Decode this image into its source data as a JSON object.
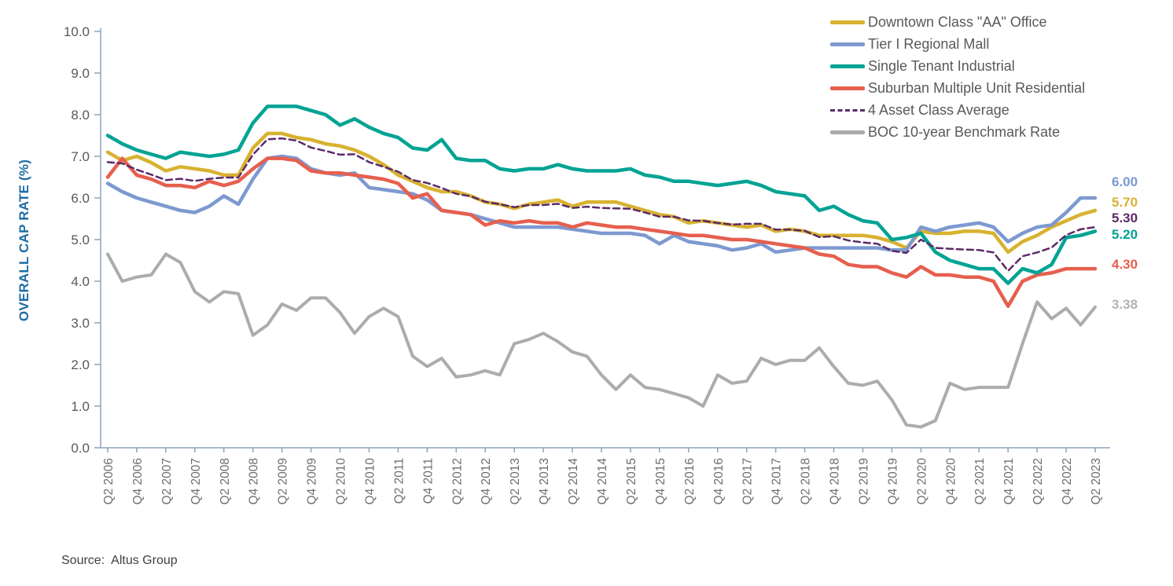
{
  "y_axis_title": "OVERALL CAP RATE (%)",
  "source": {
    "text": "Source:  Altus Group"
  },
  "colors": {
    "axis_line": "#8EA2BD",
    "tick_text": "#595959",
    "x_label_text": "#6e6e6e",
    "y_title": "#1E6CA5"
  },
  "end_labels": [
    {
      "text": "6.00",
      "color": "#7D99D0"
    },
    {
      "text": "5.70",
      "color": "#D8B230"
    },
    {
      "text": "5.30",
      "color": "#5B2A68"
    },
    {
      "text": "5.20",
      "color": "#00A394"
    },
    {
      "text": "4.30",
      "color": "#E65F4E"
    },
    {
      "text": "3.38",
      "color": "#B3B3B3"
    }
  ],
  "chart_data": {
    "type": "line",
    "title": "",
    "xlabel": "",
    "ylabel": "OVERALL CAP RATE (%)",
    "ylim": [
      0,
      10
    ],
    "y_tick_step": 1.0,
    "y_tick_labels": [
      "0.0",
      "1.0",
      "2.0",
      "3.0",
      "4.0",
      "5.0",
      "6.0",
      "7.0",
      "8.0",
      "9.0",
      "10.0"
    ],
    "grid": false,
    "legend_position": "top-right",
    "x_label_step": 2,
    "x": [
      "Q2 2006",
      "Q3 2006",
      "Q4 2006",
      "Q1 2007",
      "Q2 2007",
      "Q3 2007",
      "Q4 2007",
      "Q1 2008",
      "Q2 2008",
      "Q3 2008",
      "Q4 2008",
      "Q1 2009",
      "Q2 2009",
      "Q3 2009",
      "Q4 2009",
      "Q1 2010",
      "Q2 2010",
      "Q3 2010",
      "Q4 2010",
      "Q1 2011",
      "Q2 2011",
      "Q3 2011",
      "Q4 2011",
      "Q1 2012",
      "Q2 2012",
      "Q3 2012",
      "Q4 2012",
      "Q1 2013",
      "Q2 2013",
      "Q3 2013",
      "Q4 2013",
      "Q1 2014",
      "Q2 2014",
      "Q3 2014",
      "Q4 2014",
      "Q1 2015",
      "Q2 2015",
      "Q3 2015",
      "Q4 2015",
      "Q1 2016",
      "Q2 2016",
      "Q3 2016",
      "Q4 2016",
      "Q1 2017",
      "Q2 2017",
      "Q3 2017",
      "Q4 2017",
      "Q1 2018",
      "Q2 2018",
      "Q3 2018",
      "Q4 2018",
      "Q1 2019",
      "Q2 2019",
      "Q3 2019",
      "Q4 2019",
      "Q1 2020",
      "Q2 2020",
      "Q3 2020",
      "Q4 2020",
      "Q1 2021",
      "Q2 2021",
      "Q3 2021",
      "Q4 2021",
      "Q1 2022",
      "Q2 2022",
      "Q3 2022",
      "Q4 2022",
      "Q1 2023",
      "Q2 2023"
    ],
    "series": [
      {
        "name": "Downtown Class \"AA\" Office",
        "color": "#D8B230",
        "dash": false,
        "width": 4.5,
        "values": [
          7.1,
          6.9,
          7.0,
          6.85,
          6.65,
          6.75,
          6.7,
          6.65,
          6.55,
          6.55,
          7.2,
          7.55,
          7.55,
          7.45,
          7.4,
          7.3,
          7.25,
          7.15,
          7.0,
          6.8,
          6.55,
          6.4,
          6.25,
          6.15,
          6.15,
          6.05,
          5.9,
          5.85,
          5.75,
          5.85,
          5.9,
          5.95,
          5.8,
          5.9,
          5.9,
          5.9,
          5.8,
          5.7,
          5.6,
          5.55,
          5.4,
          5.45,
          5.4,
          5.35,
          5.3,
          5.35,
          5.2,
          5.25,
          5.2,
          5.1,
          5.1,
          5.1,
          5.1,
          5.05,
          4.95,
          4.8,
          5.2,
          5.15,
          5.15,
          5.2,
          5.2,
          5.15,
          4.7,
          4.95,
          5.1,
          5.3,
          5.45,
          5.6,
          5.7
        ]
      },
      {
        "name": "Tier I Regional Mall",
        "color": "#7D99D0",
        "dash": false,
        "width": 4.5,
        "values": [
          6.35,
          6.15,
          6.0,
          5.9,
          5.8,
          5.7,
          5.65,
          5.8,
          6.05,
          5.85,
          6.45,
          6.95,
          7.0,
          6.95,
          6.7,
          6.6,
          6.55,
          6.6,
          6.25,
          6.2,
          6.15,
          6.1,
          5.95,
          5.7,
          5.65,
          5.6,
          5.5,
          5.4,
          5.3,
          5.3,
          5.3,
          5.3,
          5.25,
          5.2,
          5.15,
          5.15,
          5.15,
          5.1,
          4.9,
          5.1,
          4.95,
          4.9,
          4.85,
          4.75,
          4.8,
          4.9,
          4.7,
          4.75,
          4.8,
          4.8,
          4.8,
          4.8,
          4.8,
          4.8,
          4.75,
          4.75,
          5.3,
          5.2,
          5.3,
          5.35,
          5.4,
          5.3,
          4.95,
          5.15,
          5.3,
          5.35,
          5.65,
          6.0,
          6.0
        ]
      },
      {
        "name": "Single Tenant Industrial",
        "color": "#00A394",
        "dash": false,
        "width": 4.5,
        "values": [
          7.5,
          7.3,
          7.15,
          7.05,
          6.95,
          7.1,
          7.05,
          7.0,
          7.05,
          7.15,
          7.8,
          8.2,
          8.2,
          8.2,
          8.1,
          8.0,
          7.75,
          7.9,
          7.7,
          7.55,
          7.45,
          7.2,
          7.15,
          7.4,
          6.95,
          6.9,
          6.9,
          6.7,
          6.65,
          6.7,
          6.7,
          6.8,
          6.7,
          6.65,
          6.65,
          6.65,
          6.7,
          6.55,
          6.5,
          6.4,
          6.4,
          6.35,
          6.3,
          6.35,
          6.4,
          6.3,
          6.15,
          6.1,
          6.05,
          5.7,
          5.8,
          5.6,
          5.45,
          5.4,
          5.0,
          5.05,
          5.15,
          4.7,
          4.5,
          4.4,
          4.3,
          4.3,
          3.95,
          4.3,
          4.2,
          4.4,
          5.05,
          5.1,
          5.2
        ]
      },
      {
        "name": "Suburban Multiple Unit Residential",
        "color": "#E65F4E",
        "dash": false,
        "width": 4.5,
        "values": [
          6.5,
          6.95,
          6.55,
          6.45,
          6.3,
          6.3,
          6.25,
          6.4,
          6.3,
          6.4,
          6.7,
          6.95,
          6.95,
          6.9,
          6.65,
          6.6,
          6.6,
          6.55,
          6.5,
          6.45,
          6.35,
          6.0,
          6.1,
          5.7,
          5.65,
          5.6,
          5.35,
          5.45,
          5.4,
          5.45,
          5.4,
          5.4,
          5.3,
          5.4,
          5.35,
          5.3,
          5.3,
          5.25,
          5.2,
          5.15,
          5.1,
          5.1,
          5.05,
          5.0,
          5.0,
          4.95,
          4.9,
          4.85,
          4.8,
          4.65,
          4.6,
          4.4,
          4.35,
          4.35,
          4.2,
          4.1,
          4.35,
          4.15,
          4.15,
          4.1,
          4.1,
          4.0,
          3.4,
          4.0,
          4.15,
          4.2,
          4.3,
          4.3,
          4.3
        ]
      },
      {
        "name": "4 Asset Class Average",
        "color": "#5B2A68",
        "dash": true,
        "width": 2.5,
        "values": [
          6.86,
          6.83,
          6.68,
          6.56,
          6.43,
          6.46,
          6.41,
          6.46,
          6.49,
          6.49,
          7.04,
          7.41,
          7.43,
          7.38,
          7.21,
          7.13,
          7.04,
          7.05,
          6.86,
          6.75,
          6.63,
          6.43,
          6.36,
          6.24,
          6.1,
          6.04,
          5.91,
          5.85,
          5.78,
          5.83,
          5.83,
          5.86,
          5.76,
          5.79,
          5.76,
          5.75,
          5.74,
          5.65,
          5.55,
          5.55,
          5.46,
          5.45,
          5.4,
          5.36,
          5.38,
          5.38,
          5.24,
          5.24,
          5.21,
          5.06,
          5.08,
          4.98,
          4.93,
          4.9,
          4.73,
          4.68,
          5.0,
          4.8,
          4.78,
          4.76,
          4.75,
          4.69,
          4.25,
          4.6,
          4.69,
          4.81,
          5.11,
          5.25,
          5.3
        ]
      },
      {
        "name": "BOC 10-year Benchmark Rate",
        "color": "#ACACAC",
        "dash": false,
        "width": 4,
        "values": [
          4.65,
          4.0,
          4.1,
          4.15,
          4.65,
          4.45,
          3.75,
          3.5,
          3.75,
          3.7,
          2.7,
          2.95,
          3.45,
          3.3,
          3.6,
          3.6,
          3.25,
          2.75,
          3.15,
          3.35,
          3.15,
          2.2,
          1.95,
          2.15,
          1.7,
          1.75,
          1.85,
          1.75,
          2.5,
          2.6,
          2.75,
          2.55,
          2.3,
          2.2,
          1.75,
          1.4,
          1.75,
          1.45,
          1.4,
          1.3,
          1.2,
          1.0,
          1.75,
          1.55,
          1.6,
          2.15,
          2.0,
          2.1,
          2.1,
          2.4,
          1.95,
          1.55,
          1.5,
          1.6,
          1.15,
          0.55,
          0.5,
          0.65,
          1.55,
          1.4,
          1.45,
          1.45,
          1.45,
          2.5,
          3.5,
          3.1,
          3.35,
          2.95,
          3.38
        ]
      }
    ]
  }
}
